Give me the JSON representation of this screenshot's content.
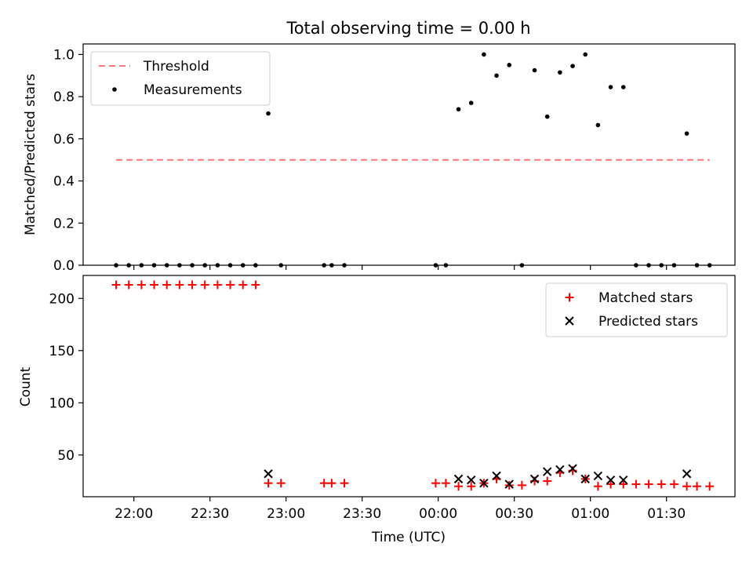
{
  "figure": {
    "title": "Total observing time = 0.00 h",
    "xlabel": "Time (UTC)"
  },
  "colors": {
    "threshold": "#ff7777",
    "measurement": "#000000",
    "matched": "#ff0000",
    "predicted": "#000000"
  },
  "chart_data": [
    {
      "type": "scatter",
      "ylabel": "Matched/Predicted stars",
      "x_ticks": [
        "22:00",
        "22:30",
        "23:00",
        "23:30",
        "00:00",
        "00:30",
        "01:00",
        "01:30"
      ],
      "y_ticks": [
        "0.0",
        "0.2",
        "0.4",
        "0.6",
        "0.8",
        "1.0"
      ],
      "xlim_minutes": [
        -20,
        237
      ],
      "ylim": [
        0,
        1.05
      ],
      "legend_position": "upper left",
      "legend": [
        "Threshold",
        "Measurements"
      ],
      "threshold": {
        "name": "Threshold",
        "y": 0.5,
        "x_range_minutes": [
          -7,
          227
        ]
      },
      "series": [
        {
          "name": "Measurements",
          "x_minutes": [
            -7,
            -2,
            3,
            8,
            13,
            18,
            23,
            28,
            33,
            38,
            43,
            48,
            53,
            58,
            75,
            78,
            83,
            119,
            123,
            128,
            133,
            138,
            143,
            148,
            153,
            158,
            163,
            168,
            173,
            178,
            183,
            188,
            193,
            198,
            203,
            208,
            213,
            218,
            222,
            227
          ],
          "y": [
            0,
            0,
            0,
            0,
            0,
            0,
            0,
            0,
            0,
            0,
            0,
            0,
            0.72,
            0,
            0,
            0,
            0,
            0,
            0,
            0.74,
            0.77,
            1.0,
            0.9,
            0.95,
            0,
            0.925,
            0.705,
            0.915,
            0.945,
            1.0,
            0.665,
            0.845,
            0.845,
            0,
            0,
            0,
            0,
            0.625,
            0,
            0
          ]
        }
      ]
    },
    {
      "type": "scatter",
      "ylabel": "Count",
      "x_ticks": [
        "22:00",
        "22:30",
        "23:00",
        "23:30",
        "00:00",
        "00:30",
        "01:00",
        "01:30"
      ],
      "y_ticks": [
        "50",
        "100",
        "150",
        "200"
      ],
      "xlim_minutes": [
        -20,
        237
      ],
      "ylim": [
        10,
        222
      ],
      "legend_position": "upper right",
      "legend": [
        "Matched stars",
        "Predicted stars"
      ],
      "series": [
        {
          "name": "Matched stars",
          "marker": "+",
          "x_minutes": [
            -7,
            -2,
            3,
            8,
            13,
            18,
            23,
            28,
            33,
            38,
            43,
            48,
            53,
            58,
            75,
            78,
            83,
            119,
            123,
            128,
            133,
            138,
            143,
            148,
            153,
            158,
            163,
            168,
            173,
            178,
            183,
            188,
            193,
            198,
            203,
            208,
            213,
            218,
            222,
            227
          ],
          "y": [
            213,
            213,
            213,
            213,
            213,
            213,
            213,
            213,
            213,
            213,
            213,
            213,
            23,
            23,
            23,
            23,
            23,
            23,
            23,
            20,
            20,
            23,
            27,
            21,
            21,
            25,
            25,
            33,
            35,
            27,
            20,
            22,
            22,
            22,
            22,
            22,
            22,
            20,
            20,
            20
          ]
        },
        {
          "name": "Predicted stars",
          "marker": "x",
          "x_minutes": [
            53,
            128,
            133,
            138,
            143,
            148,
            158,
            163,
            168,
            173,
            178,
            183,
            188,
            193,
            218
          ],
          "y": [
            32,
            27,
            26,
            23,
            30,
            22,
            27,
            34,
            36,
            37,
            27,
            30,
            26,
            26,
            32
          ]
        }
      ]
    }
  ]
}
